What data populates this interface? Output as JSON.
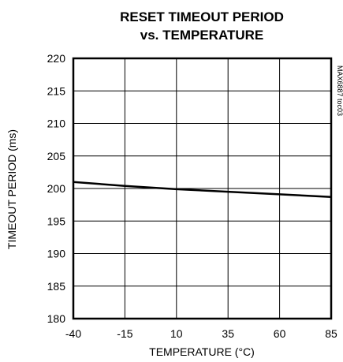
{
  "chart_data": {
    "type": "line",
    "title_line1": "RESET TIMEOUT PERIOD",
    "title_line2": "vs. TEMPERATURE",
    "xlabel": "TEMPERATURE (°C)",
    "ylabel": "TIMEOUT PERIOD (ms)",
    "figure_code": "MAX6887 toc03",
    "xlim": [
      -40,
      85
    ],
    "ylim": [
      180,
      220
    ],
    "x_ticks": [
      -40,
      -15,
      10,
      35,
      60,
      85
    ],
    "y_ticks": [
      180,
      185,
      190,
      195,
      200,
      205,
      210,
      215,
      220
    ],
    "x_tick_labels": [
      "-40",
      "-15",
      "10",
      "35",
      "60",
      "85"
    ],
    "y_tick_labels": [
      "180",
      "185",
      "190",
      "195",
      "200",
      "205",
      "210",
      "215",
      "220"
    ],
    "grid": true,
    "series": [
      {
        "x": [
          -40,
          -15,
          10,
          35,
          60,
          85
        ],
        "y": [
          201.0,
          200.4,
          199.9,
          199.5,
          199.1,
          198.7
        ]
      }
    ]
  }
}
